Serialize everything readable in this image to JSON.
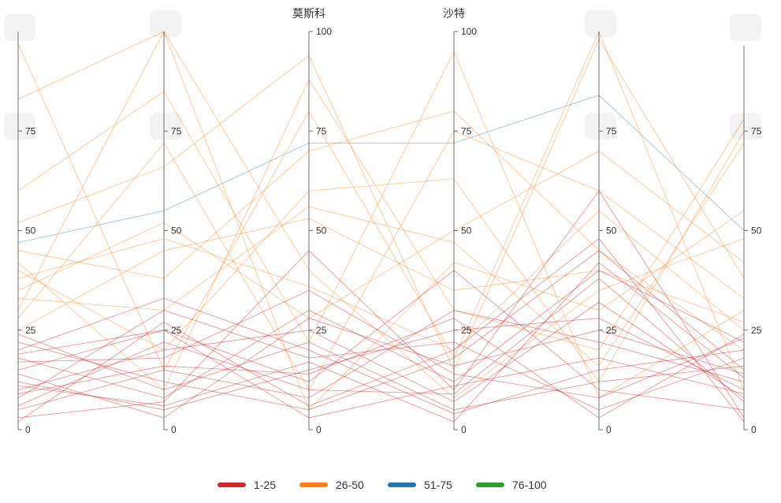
{
  "chart_data": {
    "type": "parallel",
    "axes": [
      {
        "name": "",
        "max_label": ""
      },
      {
        "name": "",
        "max_label": ""
      },
      {
        "name": "莫斯科",
        "max_label": "100"
      },
      {
        "name": "沙特",
        "max_label": "100"
      },
      {
        "name": "",
        "max_label": ""
      },
      {
        "name": "",
        "max_label": ""
      }
    ],
    "ylim": [
      0,
      100
    ],
    "ticks": [
      "0",
      "25",
      "50",
      "75",
      "100"
    ],
    "legend": [
      {
        "label": "1-25",
        "color": "#d62728"
      },
      {
        "label": "26-50",
        "color": "#ff7f0e"
      },
      {
        "label": "51-75",
        "color": "#1f77b4"
      },
      {
        "label": "76-100",
        "color": "#2ca02c"
      }
    ],
    "legend_position": "bottom",
    "series": [
      {
        "group": "51-75",
        "values": [
          47,
          55,
          72,
          72,
          84,
          50
        ]
      },
      {
        "group": "26-50",
        "values": [
          97,
          15,
          80,
          18,
          100,
          10
        ]
      },
      {
        "group": "26-50",
        "values": [
          83,
          100,
          5,
          42,
          30,
          55
        ]
      },
      {
        "group": "26-50",
        "values": [
          60,
          85,
          22,
          95,
          8,
          30
        ]
      },
      {
        "group": "26-50",
        "values": [
          52,
          66,
          94,
          15,
          98,
          38
        ]
      },
      {
        "group": "26-50",
        "values": [
          45,
          38,
          70,
          80,
          45,
          20
        ]
      },
      {
        "group": "26-50",
        "values": [
          40,
          20,
          60,
          63,
          12,
          75
        ]
      },
      {
        "group": "26-50",
        "values": [
          35,
          52,
          28,
          50,
          70,
          42
        ]
      },
      {
        "group": "26-50",
        "values": [
          30,
          100,
          40,
          8,
          35,
          48
        ]
      },
      {
        "group": "26-50",
        "values": [
          28,
          72,
          10,
          75,
          60,
          33
        ]
      },
      {
        "group": "26-50",
        "values": [
          42,
          10,
          88,
          30,
          20,
          78
        ]
      },
      {
        "group": "26-50",
        "values": [
          25,
          45,
          53,
          35,
          40,
          27
        ]
      },
      {
        "group": "26-50",
        "values": [
          33,
          30,
          56,
          47,
          16,
          72
        ]
      },
      {
        "group": "26-50",
        "values": [
          38,
          48,
          36,
          20,
          55,
          25
        ]
      },
      {
        "group": "1-25",
        "values": [
          18,
          8,
          30,
          12,
          40,
          22
        ]
      },
      {
        "group": "1-25",
        "values": [
          15,
          25,
          12,
          40,
          10,
          5
        ]
      },
      {
        "group": "1-25",
        "values": [
          22,
          12,
          5,
          18,
          45,
          15
        ]
      },
      {
        "group": "1-25",
        "values": [
          10,
          20,
          25,
          7,
          32,
          8
        ]
      },
      {
        "group": "1-25",
        "values": [
          8,
          30,
          18,
          22,
          5,
          18
        ]
      },
      {
        "group": "1-25",
        "values": [
          5,
          15,
          8,
          30,
          22,
          12
        ]
      },
      {
        "group": "1-25",
        "values": [
          3,
          7,
          45,
          10,
          60,
          3
        ]
      },
      {
        "group": "1-25",
        "values": [
          20,
          33,
          20,
          4,
          15,
          20
        ]
      },
      {
        "group": "1-25",
        "values": [
          12,
          5,
          15,
          25,
          28,
          10
        ]
      },
      {
        "group": "1-25",
        "values": [
          17,
          18,
          35,
          14,
          8,
          23
        ]
      },
      {
        "group": "1-25",
        "values": [
          6,
          22,
          10,
          9,
          38,
          7
        ]
      },
      {
        "group": "1-25",
        "values": [
          24,
          10,
          22,
          5,
          12,
          16
        ]
      },
      {
        "group": "1-25",
        "values": [
          2,
          27,
          6,
          20,
          48,
          2
        ]
      },
      {
        "group": "1-25",
        "values": [
          14,
          3,
          28,
          16,
          25,
          14
        ]
      },
      {
        "group": "1-25",
        "values": [
          9,
          16,
          14,
          28,
          3,
          24
        ]
      },
      {
        "group": "1-25",
        "values": [
          19,
          25,
          3,
          11,
          18,
          9
        ]
      },
      {
        "group": "1-25",
        "values": [
          11,
          6,
          17,
          2,
          42,
          13
        ]
      }
    ]
  }
}
